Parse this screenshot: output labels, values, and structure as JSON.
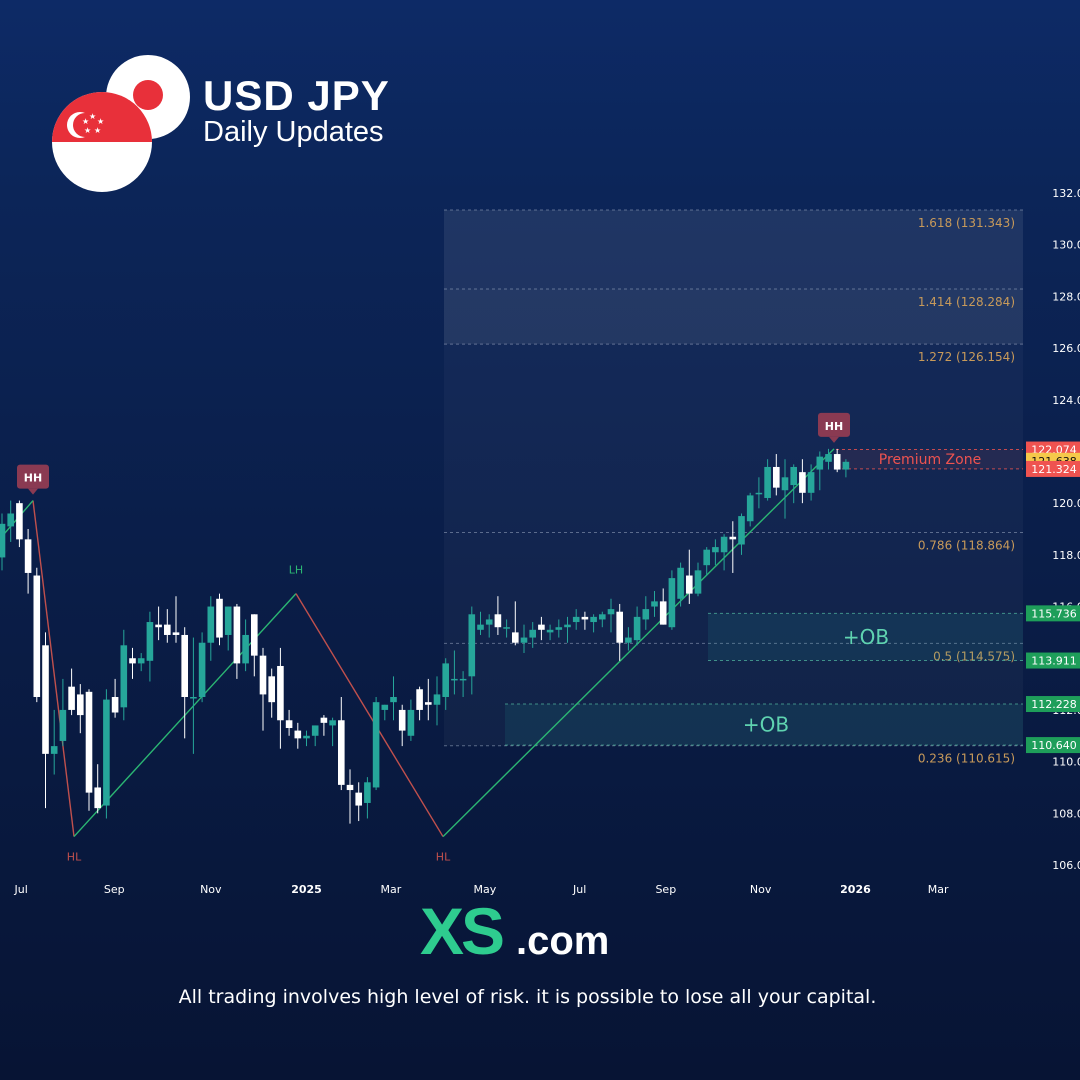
{
  "header": {
    "title": "USD JPY",
    "subtitle": "Daily Updates"
  },
  "brand": {
    "logo_text": "XS.com"
  },
  "footer": {
    "disclaimer": "All trading involves high level of risk. it is possible to lose all your capital."
  },
  "colors": {
    "bull": "#26a69a",
    "bear": "#ffffff",
    "fib": "#c89a5a",
    "premium": "#ef5350",
    "ob_label": "#5fd3b0",
    "zigzag_up": "#2bb673",
    "zigzag_down": "#c0504d",
    "marker": "#8a3a52"
  },
  "chart_data": {
    "type": "candlestick",
    "title": "",
    "xlabel": "",
    "ylabel": "",
    "ylim": [
      105.4,
      132.6
    ],
    "y_ticks": [
      "106.000",
      "108.000",
      "110.000",
      "112.000",
      "114.000",
      "116.000",
      "118.000",
      "120.000",
      "122.000",
      "124.000",
      "126.000",
      "128.000",
      "130.000",
      "132.000"
    ],
    "x_ticks": [
      "Jul",
      "Sep",
      "Nov",
      "2025",
      "Mar",
      "May",
      "Jul",
      "Sep",
      "Nov",
      "2026",
      "Mar"
    ],
    "candles": [
      {
        "o": 117.9,
        "h": 119.6,
        "l": 117.4,
        "c": 119.2
      },
      {
        "o": 119.1,
        "h": 120.1,
        "l": 118.5,
        "c": 119.6
      },
      {
        "o": 120.0,
        "h": 120.1,
        "l": 118.3,
        "c": 118.6
      },
      {
        "o": 118.6,
        "h": 119.0,
        "l": 116.5,
        "c": 117.3
      },
      {
        "o": 117.2,
        "h": 117.5,
        "l": 112.3,
        "c": 112.5
      },
      {
        "o": 114.5,
        "h": 115.0,
        "l": 108.2,
        "c": 110.3
      },
      {
        "o": 110.3,
        "h": 112.0,
        "l": 109.5,
        "c": 110.6
      },
      {
        "o": 110.8,
        "h": 113.2,
        "l": 110.6,
        "c": 112.0
      },
      {
        "o": 112.9,
        "h": 113.6,
        "l": 111.8,
        "c": 112.0
      },
      {
        "o": 112.6,
        "h": 113.0,
        "l": 111.1,
        "c": 111.8
      },
      {
        "o": 112.7,
        "h": 112.8,
        "l": 108.1,
        "c": 108.8
      },
      {
        "o": 109.0,
        "h": 109.9,
        "l": 108.0,
        "c": 108.2
      },
      {
        "o": 108.3,
        "h": 112.8,
        "l": 107.8,
        "c": 112.4
      },
      {
        "o": 112.5,
        "h": 113.2,
        "l": 111.7,
        "c": 111.9
      },
      {
        "o": 112.1,
        "h": 115.1,
        "l": 111.6,
        "c": 114.5
      },
      {
        "o": 114.0,
        "h": 114.4,
        "l": 113.2,
        "c": 113.8
      },
      {
        "o": 113.8,
        "h": 114.2,
        "l": 113.5,
        "c": 114.0
      },
      {
        "o": 113.9,
        "h": 115.8,
        "l": 113.1,
        "c": 115.4
      },
      {
        "o": 115.3,
        "h": 116.0,
        "l": 114.7,
        "c": 115.2
      },
      {
        "o": 115.3,
        "h": 115.9,
        "l": 114.6,
        "c": 114.9
      },
      {
        "o": 115.0,
        "h": 116.4,
        "l": 114.6,
        "c": 114.9
      },
      {
        "o": 114.9,
        "h": 115.2,
        "l": 110.9,
        "c": 112.5
      },
      {
        "o": 112.5,
        "h": 114.8,
        "l": 110.3,
        "c": 112.5
      },
      {
        "o": 112.5,
        "h": 115.0,
        "l": 112.3,
        "c": 114.6
      },
      {
        "o": 114.6,
        "h": 116.4,
        "l": 113.9,
        "c": 116.0
      },
      {
        "o": 116.3,
        "h": 116.5,
        "l": 114.5,
        "c": 114.8
      },
      {
        "o": 114.9,
        "h": 116.0,
        "l": 114.3,
        "c": 116.0
      },
      {
        "o": 116.0,
        "h": 116.1,
        "l": 113.2,
        "c": 113.8
      },
      {
        "o": 113.8,
        "h": 115.5,
        "l": 113.5,
        "c": 114.9
      },
      {
        "o": 115.7,
        "h": 115.7,
        "l": 113.3,
        "c": 114.1
      },
      {
        "o": 114.1,
        "h": 114.4,
        "l": 111.2,
        "c": 112.6
      },
      {
        "o": 113.3,
        "h": 113.6,
        "l": 111.7,
        "c": 112.3
      },
      {
        "o": 113.7,
        "h": 114.4,
        "l": 110.5,
        "c": 111.6
      },
      {
        "o": 111.6,
        "h": 112.0,
        "l": 111.0,
        "c": 111.3
      },
      {
        "o": 111.2,
        "h": 111.5,
        "l": 110.5,
        "c": 110.9
      },
      {
        "o": 110.9,
        "h": 111.2,
        "l": 110.6,
        "c": 111.0
      },
      {
        "o": 111.0,
        "h": 111.4,
        "l": 110.6,
        "c": 111.4
      },
      {
        "o": 111.7,
        "h": 111.8,
        "l": 111.0,
        "c": 111.5
      },
      {
        "o": 111.4,
        "h": 111.7,
        "l": 110.6,
        "c": 111.6
      },
      {
        "o": 111.6,
        "h": 112.5,
        "l": 108.9,
        "c": 109.1
      },
      {
        "o": 109.1,
        "h": 109.7,
        "l": 107.6,
        "c": 108.9
      },
      {
        "o": 108.8,
        "h": 109.2,
        "l": 107.7,
        "c": 108.3
      },
      {
        "o": 108.4,
        "h": 109.4,
        "l": 107.8,
        "c": 109.2
      },
      {
        "o": 109.0,
        "h": 112.5,
        "l": 108.9,
        "c": 112.3
      },
      {
        "o": 112.0,
        "h": 112.2,
        "l": 111.6,
        "c": 112.2
      },
      {
        "o": 112.3,
        "h": 113.3,
        "l": 111.6,
        "c": 112.5
      },
      {
        "o": 112.0,
        "h": 112.2,
        "l": 110.6,
        "c": 111.2
      },
      {
        "o": 111.0,
        "h": 112.4,
        "l": 110.8,
        "c": 112.0
      },
      {
        "o": 112.8,
        "h": 112.9,
        "l": 111.6,
        "c": 112.0
      },
      {
        "o": 112.3,
        "h": 113.2,
        "l": 111.6,
        "c": 112.2
      },
      {
        "o": 112.2,
        "h": 113.3,
        "l": 111.4,
        "c": 112.6
      },
      {
        "o": 112.5,
        "h": 114.0,
        "l": 112.0,
        "c": 113.8
      },
      {
        "o": 113.2,
        "h": 114.3,
        "l": 112.6,
        "c": 113.2
      },
      {
        "o": 113.2,
        "h": 113.5,
        "l": 112.5,
        "c": 113.2
      },
      {
        "o": 113.3,
        "h": 116.0,
        "l": 112.6,
        "c": 115.7
      },
      {
        "o": 115.1,
        "h": 115.8,
        "l": 114.9,
        "c": 115.3
      },
      {
        "o": 115.3,
        "h": 115.7,
        "l": 114.8,
        "c": 115.5
      },
      {
        "o": 115.7,
        "h": 116.4,
        "l": 114.9,
        "c": 115.2
      },
      {
        "o": 115.2,
        "h": 115.5,
        "l": 114.8,
        "c": 115.2
      },
      {
        "o": 115.0,
        "h": 116.2,
        "l": 114.5,
        "c": 114.6
      },
      {
        "o": 114.6,
        "h": 115.3,
        "l": 114.2,
        "c": 114.8
      },
      {
        "o": 114.8,
        "h": 115.4,
        "l": 114.4,
        "c": 115.1
      },
      {
        "o": 115.3,
        "h": 115.6,
        "l": 114.7,
        "c": 115.1
      },
      {
        "o": 115.0,
        "h": 115.3,
        "l": 114.7,
        "c": 115.1
      },
      {
        "o": 115.1,
        "h": 115.5,
        "l": 114.8,
        "c": 115.2
      },
      {
        "o": 115.2,
        "h": 115.6,
        "l": 114.6,
        "c": 115.3
      },
      {
        "o": 115.4,
        "h": 115.9,
        "l": 115.1,
        "c": 115.6
      },
      {
        "o": 115.6,
        "h": 115.8,
        "l": 115.1,
        "c": 115.5
      },
      {
        "o": 115.4,
        "h": 115.7,
        "l": 115.0,
        "c": 115.6
      },
      {
        "o": 115.5,
        "h": 115.8,
        "l": 115.2,
        "c": 115.7
      },
      {
        "o": 115.7,
        "h": 116.3,
        "l": 115.0,
        "c": 115.9
      },
      {
        "o": 115.8,
        "h": 116.1,
        "l": 113.9,
        "c": 114.6
      },
      {
        "o": 114.6,
        "h": 115.2,
        "l": 114.3,
        "c": 114.8
      },
      {
        "o": 114.7,
        "h": 116.0,
        "l": 114.5,
        "c": 115.6
      },
      {
        "o": 115.5,
        "h": 116.4,
        "l": 115.1,
        "c": 115.9
      },
      {
        "o": 116.0,
        "h": 116.6,
        "l": 115.6,
        "c": 116.2
      },
      {
        "o": 116.2,
        "h": 116.7,
        "l": 115.3,
        "c": 115.3
      },
      {
        "o": 115.2,
        "h": 117.4,
        "l": 115.1,
        "c": 117.1
      },
      {
        "o": 116.3,
        "h": 117.7,
        "l": 116.0,
        "c": 117.5
      },
      {
        "o": 117.2,
        "h": 118.2,
        "l": 116.1,
        "c": 116.5
      },
      {
        "o": 116.5,
        "h": 117.7,
        "l": 116.4,
        "c": 117.4
      },
      {
        "o": 117.6,
        "h": 118.3,
        "l": 117.2,
        "c": 118.2
      },
      {
        "o": 118.1,
        "h": 118.6,
        "l": 117.6,
        "c": 118.3
      },
      {
        "o": 118.1,
        "h": 118.8,
        "l": 117.4,
        "c": 118.7
      },
      {
        "o": 118.7,
        "h": 119.3,
        "l": 117.3,
        "c": 118.6
      },
      {
        "o": 118.4,
        "h": 119.6,
        "l": 118.0,
        "c": 119.5
      },
      {
        "o": 119.3,
        "h": 120.4,
        "l": 119.1,
        "c": 120.3
      },
      {
        "o": 120.4,
        "h": 121.0,
        "l": 119.8,
        "c": 120.4
      },
      {
        "o": 120.2,
        "h": 121.7,
        "l": 120.1,
        "c": 121.4
      },
      {
        "o": 121.4,
        "h": 121.9,
        "l": 120.3,
        "c": 120.6
      },
      {
        "o": 120.5,
        "h": 121.7,
        "l": 119.4,
        "c": 121.0
      },
      {
        "o": 120.7,
        "h": 121.5,
        "l": 120.0,
        "c": 121.4
      },
      {
        "o": 121.2,
        "h": 121.7,
        "l": 120.0,
        "c": 120.4
      },
      {
        "o": 120.4,
        "h": 121.5,
        "l": 120.1,
        "c": 121.2
      },
      {
        "o": 121.3,
        "h": 122.0,
        "l": 120.5,
        "c": 121.8
      },
      {
        "o": 121.6,
        "h": 122.1,
        "l": 121.3,
        "c": 121.9
      },
      {
        "o": 121.9,
        "h": 122.1,
        "l": 121.2,
        "c": 121.3
      },
      {
        "o": 121.3,
        "h": 121.7,
        "l": 121.0,
        "c": 121.6
      }
    ],
    "fib_levels": [
      {
        "label": "1.618 (131.343)",
        "price": 131.343
      },
      {
        "label": "1.414 (128.284)",
        "price": 128.284
      },
      {
        "label": "1.272 (126.154)",
        "price": 126.154
      },
      {
        "label": "0.786 (118.864)",
        "price": 118.864
      },
      {
        "label": "0.5 (114.575)",
        "price": 114.575
      },
      {
        "label": "0.236 (110.615)",
        "price": 110.615
      }
    ],
    "price_tags": [
      {
        "text": "122.074",
        "price": 122.074,
        "color": "#ef5350"
      },
      {
        "text": "121.638",
        "price": 121.638,
        "color": "#f5c84a"
      },
      {
        "text": "121.324",
        "price": 121.324,
        "color": "#ef5350"
      },
      {
        "text": "115.736",
        "price": 115.736,
        "color": "#1e9e5a"
      },
      {
        "text": "113.911",
        "price": 113.911,
        "color": "#1e9e5a"
      },
      {
        "text": "112.228",
        "price": 112.228,
        "color": "#1e9e5a"
      },
      {
        "text": "110.640",
        "price": 110.64,
        "color": "#1e9e5a"
      }
    ],
    "zones": [
      {
        "label": "Premium Zone",
        "top": 122.074,
        "bottom": 121.324
      },
      {
        "label": "+OB",
        "top": 115.736,
        "bottom": 113.911
      },
      {
        "label": "+OB",
        "top": 112.228,
        "bottom": 110.64
      }
    ],
    "pivot_labels": [
      {
        "text": "HH",
        "price": 120.1,
        "kind": "marker"
      },
      {
        "text": "HL",
        "price": 107.1,
        "kind": "low"
      },
      {
        "text": "LH",
        "price": 116.5,
        "kind": "high"
      },
      {
        "text": "HL",
        "price": 107.1,
        "kind": "low"
      },
      {
        "text": "HH",
        "price": 122.1,
        "kind": "marker"
      }
    ],
    "zigzag": [
      120.1,
      107.1,
      116.5,
      107.1,
      122.1
    ]
  }
}
